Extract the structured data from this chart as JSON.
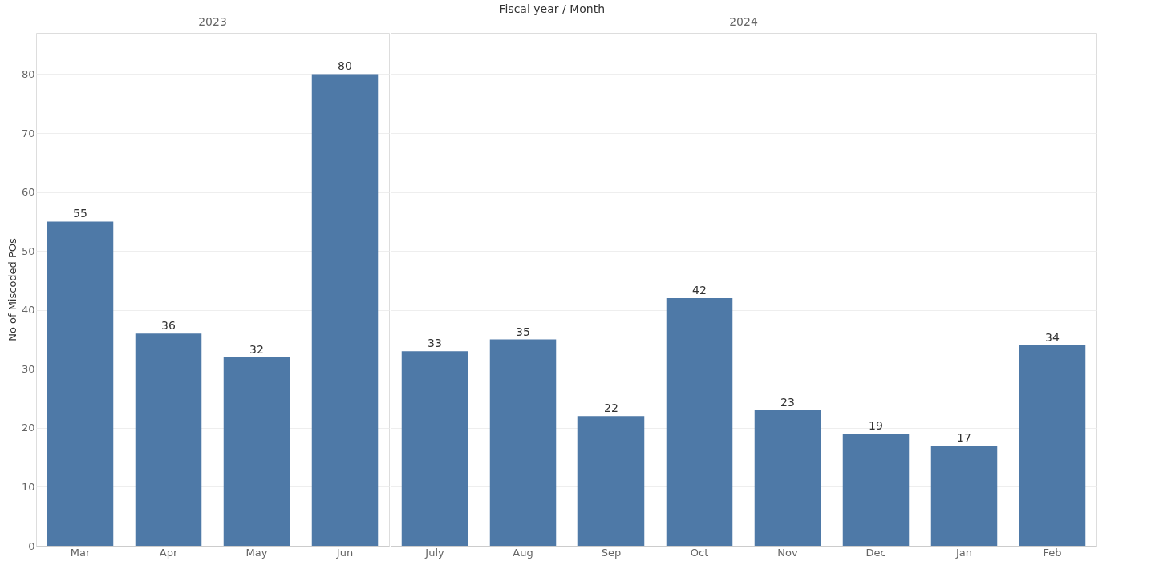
{
  "chart_data": [
    {
      "type": "bar",
      "subtitle": "2023",
      "ylabel": "No of Miscoded POs",
      "categories": [
        "Mar",
        "Apr",
        "May",
        "Jun"
      ],
      "values": [
        55,
        36,
        32,
        80
      ],
      "color": "#4e79a7",
      "ylim": [
        0,
        87
      ],
      "yticks": [
        0,
        10,
        20,
        30,
        40,
        50,
        60,
        70,
        80
      ],
      "grid": "y",
      "data_labels": true
    },
    {
      "type": "bar",
      "title": "Fiscal year / Month",
      "subtitle": "2024",
      "categories": [
        "July",
        "Aug",
        "Sep",
        "Oct",
        "Nov",
        "Dec",
        "Jan",
        "Feb"
      ],
      "values": [
        33,
        35,
        22,
        42,
        23,
        19,
        17,
        34
      ],
      "color": "#4e79a7",
      "ylim": [
        0,
        87
      ],
      "yticks": [
        0,
        10,
        20,
        30,
        40,
        50,
        60,
        70,
        80
      ],
      "grid": "y",
      "data_labels": true,
      "tick_labels": "x"
    }
  ]
}
